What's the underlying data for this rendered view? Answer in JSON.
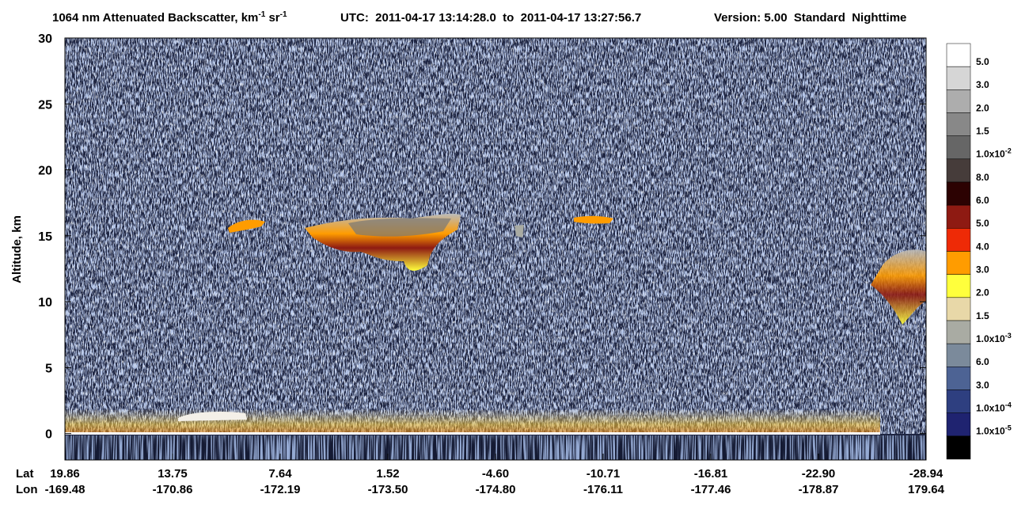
{
  "chart_data": {
    "type": "curtain",
    "title_parts": [
      "1064 nm Attenuated Backscatter, km",
      "-1",
      " sr",
      "-1"
    ],
    "time_range": "UTC:  2011-04-17 13:14:28.0  to  2011-04-17 13:27:56.7",
    "version": "Version: 5.00  Standard  Nighttime",
    "ylabel": "Altitude, km",
    "ylim": [
      -2,
      30
    ],
    "yticks": [
      0,
      5,
      10,
      15,
      20,
      25,
      30
    ],
    "x_row_labels": [
      "Lat",
      "Lon"
    ],
    "lat": [
      "19.86",
      "13.75",
      "7.64",
      "1.52",
      "-4.60",
      "-10.71",
      "-16.81",
      "-22.90",
      "-28.94"
    ],
    "lon": [
      "-169.48",
      "-170.86",
      "-172.19",
      "-173.50",
      "-174.80",
      "-176.11",
      "-177.46",
      "-178.87",
      "179.64"
    ],
    "colorbar": {
      "colors": [
        "#ffffff",
        "#d6d6d6",
        "#adadad",
        "#888888",
        "#666666",
        "#463c3a",
        "#2c0202",
        "#8e1a12",
        "#ee2a06",
        "#ff9c00",
        "#ffff3c",
        "#e8d8a8",
        "#a9aba3",
        "#7b8a9b",
        "#4d6394",
        "#2e3f80",
        "#1f2370",
        "#000000"
      ],
      "labels": [
        "5.0",
        "3.0",
        "2.0",
        "1.5",
        "1.0x10",
        "8.0",
        "6.0",
        "5.0",
        "4.0",
        "3.0",
        "2.0",
        "1.5",
        "1.0x10",
        "6.0",
        "3.0",
        "1.0x10",
        "1.0x10"
      ],
      "exponents": [
        null,
        null,
        null,
        null,
        "-2",
        null,
        null,
        null,
        null,
        null,
        null,
        null,
        "-3",
        null,
        null,
        "-4",
        "-5"
      ]
    }
  }
}
